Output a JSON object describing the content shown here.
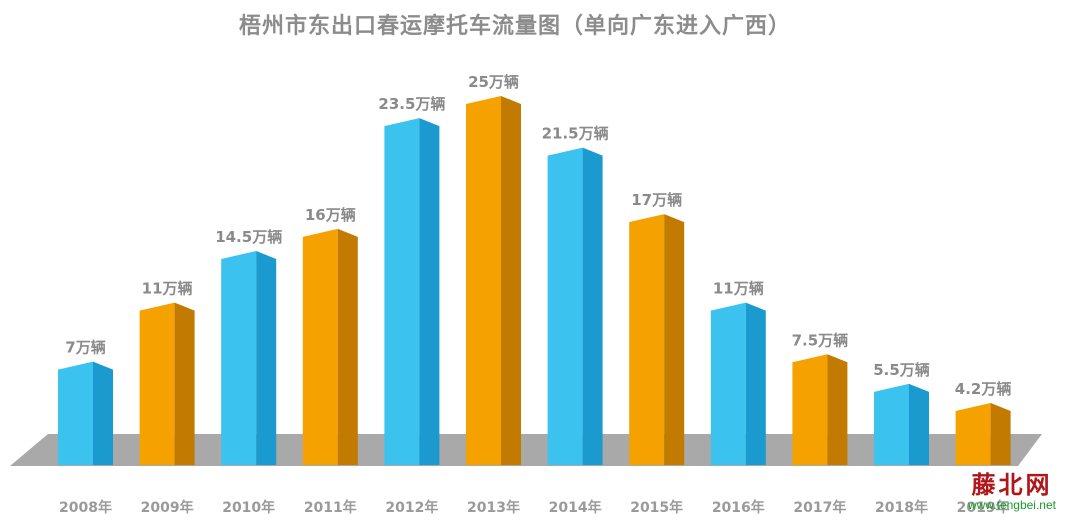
{
  "chart_data": {
    "type": "bar",
    "title": "梧州市东出口春运摩托车流量图（单向广东进入广西）",
    "categories": [
      "2008年",
      "2009年",
      "2010年",
      "2011年",
      "2012年",
      "2013年",
      "2014年",
      "2015年",
      "2016年",
      "2017年",
      "2018年",
      "2019年"
    ],
    "values": [
      7,
      11,
      14.5,
      16,
      23.5,
      25,
      21.5,
      17,
      11,
      7.5,
      5.5,
      4.2
    ],
    "data_labels": [
      "7万辆",
      "11万辆",
      "14.5万辆",
      "16万辆",
      "23.5万辆",
      "25万辆",
      "21.5万辆",
      "17万辆",
      "11万辆",
      "7.5万辆",
      "5.5万辆",
      "4.2万辆"
    ],
    "unit": "万辆",
    "xlabel": "",
    "ylabel": "",
    "ylim": [
      0,
      25
    ],
    "grid": false,
    "legend": "none",
    "style": "3d-column",
    "bar_colors": [
      "#3cc2ee",
      "#f5a100",
      "#3cc2ee",
      "#f5a100",
      "#3cc2ee",
      "#f5a100",
      "#3cc2ee",
      "#f5a100",
      "#3cc2ee",
      "#f5a100",
      "#3cc2ee",
      "#f5a100"
    ],
    "bar_side_colors": [
      "#1b9ad0",
      "#c27a00",
      "#1b9ad0",
      "#c27a00",
      "#1b9ad0",
      "#c27a00",
      "#1b9ad0",
      "#c27a00",
      "#1b9ad0",
      "#c27a00",
      "#1b9ad0",
      "#c27a00"
    ],
    "floor_color": "#a9a9a9"
  },
  "watermark": {
    "logo": "藤北网",
    "url": "www.tengbei.net"
  }
}
